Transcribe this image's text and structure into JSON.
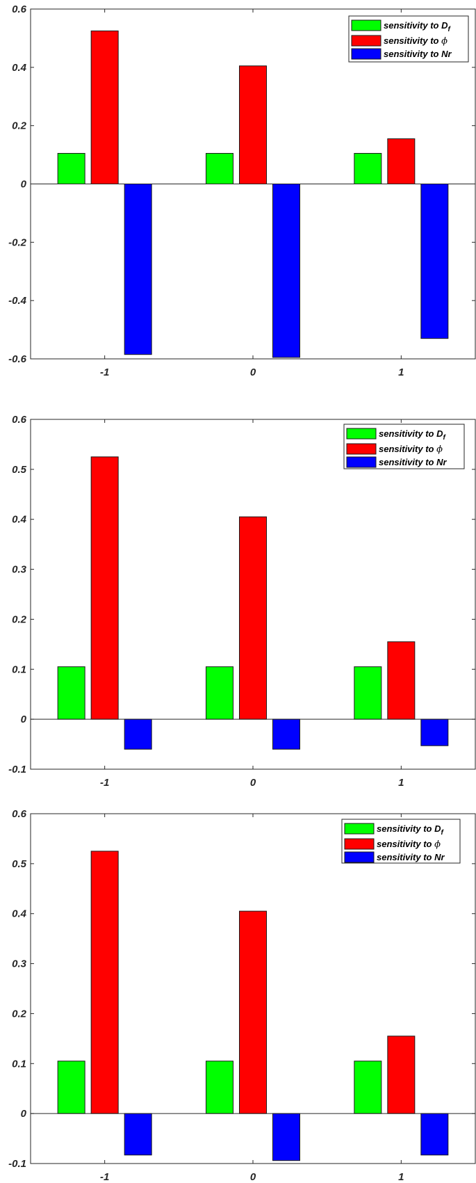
{
  "chart_data": [
    {
      "type": "bar",
      "categories": [
        "-1",
        "0",
        "1"
      ],
      "ylim": [
        -0.6,
        0.6
      ],
      "xlim": [
        -1.5,
        1.5
      ],
      "yticks": [
        "-0.6",
        "-0.4",
        "-0.2",
        "0",
        "0.2",
        "0.4",
        "0.6"
      ],
      "grid": false,
      "legend_position": "top-right",
      "series": [
        {
          "name": {
            "text": "sensitivity to ",
            "symbol": "D",
            "sub": "f"
          },
          "color": "#00ff00",
          "values": [
            0.105,
            0.105,
            0.105
          ]
        },
        {
          "name": {
            "text": "sensitivity to ",
            "symbol": "ϕ",
            "sub": ""
          },
          "color": "#ff0000",
          "values": [
            0.525,
            0.405,
            0.155
          ]
        },
        {
          "name": {
            "text": "sensitivity to Nr",
            "symbol": "",
            "sub": ""
          },
          "color": "#0000ff",
          "values": [
            -0.585,
            -0.595,
            -0.53
          ]
        }
      ]
    },
    {
      "type": "bar",
      "categories": [
        "-1",
        "0",
        "1"
      ],
      "ylim": [
        -0.1,
        0.6
      ],
      "xlim": [
        -1.5,
        1.5
      ],
      "yticks": [
        "-0.1",
        "0",
        "0.1",
        "0.2",
        "0.3",
        "0.4",
        "0.5",
        "0.6"
      ],
      "grid": false,
      "legend_position": "top-right",
      "series": [
        {
          "name": {
            "text": "sensitivity to ",
            "symbol": "D",
            "sub": "f"
          },
          "color": "#00ff00",
          "values": [
            0.105,
            0.105,
            0.105
          ]
        },
        {
          "name": {
            "text": "sensitivity to ",
            "symbol": "ϕ",
            "sub": ""
          },
          "color": "#ff0000",
          "values": [
            0.525,
            0.405,
            0.155
          ]
        },
        {
          "name": {
            "text": "sensitivity to Nr",
            "symbol": "",
            "sub": ""
          },
          "color": "#0000ff",
          "values": [
            -0.06,
            -0.06,
            -0.053
          ]
        }
      ]
    },
    {
      "type": "bar",
      "categories": [
        "-1",
        "0",
        "1"
      ],
      "ylim": [
        -0.1,
        0.6
      ],
      "xlim": [
        -1.5,
        1.5
      ],
      "yticks": [
        "-0.1",
        "0",
        "0.1",
        "0.2",
        "0.3",
        "0.4",
        "0.5",
        "0.6"
      ],
      "grid": false,
      "legend_position": "top-right",
      "series": [
        {
          "name": {
            "text": "sensitivity to ",
            "symbol": "D",
            "sub": "f"
          },
          "color": "#00ff00",
          "values": [
            0.105,
            0.105,
            0.105
          ]
        },
        {
          "name": {
            "text": "sensitivity to ",
            "symbol": "ϕ",
            "sub": ""
          },
          "color": "#ff0000",
          "values": [
            0.525,
            0.405,
            0.155
          ]
        },
        {
          "name": {
            "text": "sensitivity to Nr",
            "symbol": "",
            "sub": ""
          },
          "color": "#0000ff",
          "values": [
            -0.083,
            -0.094,
            -0.083
          ]
        }
      ]
    }
  ]
}
